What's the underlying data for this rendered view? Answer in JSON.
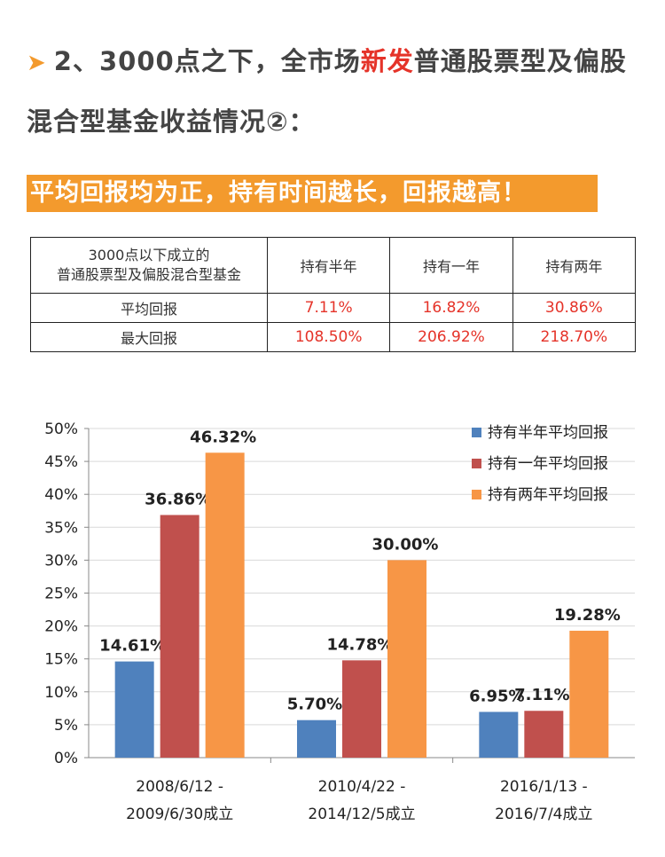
{
  "heading": {
    "prefix": "2、3000点之下，全市场",
    "highlight": "新发",
    "suffix": "普通股票型及偏股混合型基金收益情况②："
  },
  "banner": "平均回报均为正，持有时间越长，回报越高！",
  "table": {
    "header": [
      "3000点以下成立的",
      "普通股票型及偏股混合型基金",
      "持有半年",
      "持有一年",
      "持有两年"
    ],
    "rows": [
      {
        "label": "平均回报",
        "values": [
          "7.11%",
          "16.82%",
          "30.86%"
        ]
      },
      {
        "label": "最大回报",
        "values": [
          "108.50%",
          "206.92%",
          "218.70%"
        ]
      }
    ]
  },
  "chart_data": {
    "type": "bar",
    "categories": [
      [
        "2008/6/12 -",
        "2009/6/30成立"
      ],
      [
        "2010/4/22 -",
        "2014/12/5成立"
      ],
      [
        "2016/1/13 -",
        "2016/7/4成立"
      ]
    ],
    "series": [
      {
        "name": "持有半年平均回报",
        "color": "#4f81bd",
        "values": [
          14.61,
          5.7,
          6.95
        ],
        "labels": [
          "14.61%",
          "5.70%",
          "6.95%"
        ]
      },
      {
        "name": "持有一年平均回报",
        "color": "#c0504d",
        "values": [
          36.86,
          14.78,
          7.11
        ],
        "labels": [
          "36.86%",
          "14.78%",
          "7.11%"
        ]
      },
      {
        "name": "持有两年平均回报",
        "color": "#f79646",
        "values": [
          46.32,
          30.0,
          19.28
        ],
        "labels": [
          "46.32%",
          "30.00%",
          "19.28%"
        ]
      }
    ],
    "ylim": [
      0,
      50
    ],
    "yticks": [
      "0%",
      "5%",
      "10%",
      "15%",
      "20%",
      "25%",
      "30%",
      "35%",
      "40%",
      "45%",
      "50%"
    ],
    "grid": true,
    "legend": "top-right"
  }
}
